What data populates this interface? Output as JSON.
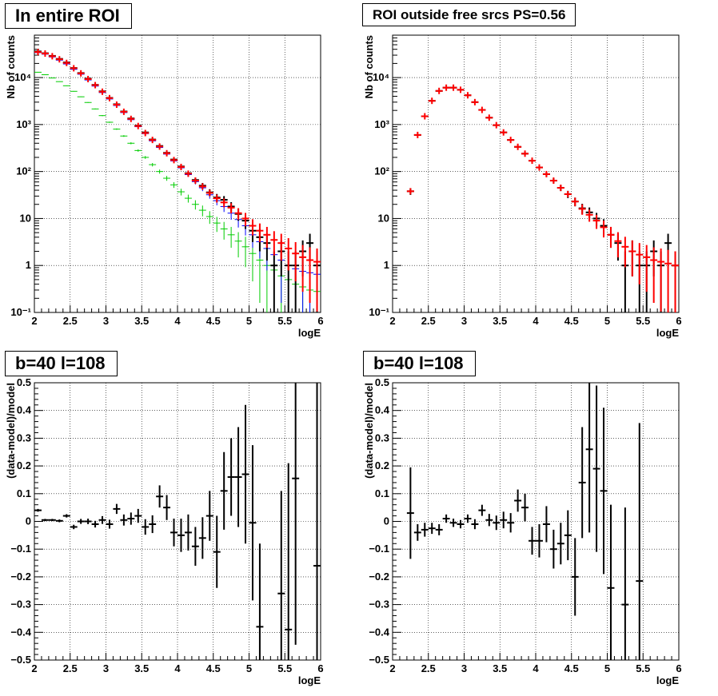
{
  "panels": [
    {
      "title": "In entire ROI"
    },
    {
      "title": "ROI outside free srcs PS=0.56"
    },
    {
      "title": "b=40 l=108"
    },
    {
      "title": "b=40 l=108"
    }
  ],
  "colors": {
    "data": "#000000",
    "model": "#ff0000",
    "blue": "#0000ff",
    "green": "#00cc00"
  },
  "chart_data": [
    {
      "type": "scatter",
      "title": "In entire ROI",
      "xlabel": "logE",
      "ylabel": "Nb of counts",
      "xlim": [
        2,
        6
      ],
      "ylim": [
        0.1,
        80000
      ],
      "log_y": true,
      "grid": true,
      "x_ticks": [
        "2",
        "2.5",
        "3",
        "3.5",
        "4",
        "4.5",
        "5",
        "5.5",
        "6"
      ],
      "y_ticks": [
        "10⁻¹",
        "1",
        "10",
        "10²",
        "10³",
        "10⁴"
      ],
      "x": [
        2.05,
        2.15,
        2.25,
        2.35,
        2.45,
        2.55,
        2.65,
        2.75,
        2.85,
        2.95,
        3.05,
        3.15,
        3.25,
        3.35,
        3.45,
        3.55,
        3.65,
        3.75,
        3.85,
        3.95,
        4.05,
        4.15,
        4.25,
        4.35,
        4.45,
        4.55,
        4.65,
        4.75,
        4.85,
        4.95,
        5.05,
        5.15,
        5.25,
        5.35,
        5.45,
        5.55,
        5.65,
        5.75,
        5.85,
        5.95
      ],
      "series": [
        {
          "color": "#000000",
          "values": [
            36000,
            33000,
            29000,
            25000,
            21000,
            16000,
            12500,
            9500,
            7000,
            5100,
            3700,
            2700,
            1900,
            1350,
            950,
            680,
            480,
            350,
            250,
            180,
            128,
            92,
            66,
            50,
            36,
            28,
            25,
            18,
            12.5,
            9,
            5.5,
            4,
            3,
            1,
            2,
            1,
            1,
            2,
            3,
            1
          ]
        },
        {
          "color": "#ff0000",
          "values": [
            35000,
            32500,
            28500,
            24500,
            20500,
            15800,
            12300,
            9300,
            6900,
            5000,
            3650,
            2650,
            1870,
            1320,
            930,
            660,
            470,
            340,
            245,
            175,
            125,
            90,
            64,
            48,
            35,
            27,
            22,
            17,
            13,
            10,
            7,
            5.5,
            4.5,
            3.5,
            3,
            2.3,
            1.8,
            1.5,
            1.3,
            1.2
          ]
        },
        {
          "color": "#0000ff",
          "values": [
            34000,
            31500,
            27500,
            23500,
            19500,
            15000,
            11800,
            8900,
            6600,
            4800,
            3500,
            2550,
            1800,
            1270,
            900,
            640,
            450,
            325,
            235,
            168,
            120,
            86,
            61,
            45,
            32,
            24,
            18,
            13,
            9.5,
            7,
            4.5,
            3.2,
            2.3,
            1.7,
            1.3,
            1.0,
            0.85,
            0.75,
            0.7,
            0.65
          ]
        },
        {
          "color": "#00cc00",
          "values": [
            13000,
            11500,
            9800,
            8200,
            6700,
            5100,
            3900,
            2950,
            2150,
            1550,
            1120,
            800,
            570,
            400,
            280,
            200,
            140,
            100,
            72,
            52,
            37,
            27,
            20,
            15,
            11,
            8,
            6,
            4.5,
            3.3,
            2.5,
            1.8,
            1.3,
            1,
            0.8,
            0.6,
            0.5,
            0.4,
            0.35,
            0.3,
            0.28
          ]
        }
      ]
    },
    {
      "type": "scatter",
      "title": "ROI outside free srcs PS=0.56",
      "xlabel": "logE",
      "ylabel": "Nb of counts",
      "xlim": [
        2,
        6
      ],
      "ylim": [
        0.1,
        80000
      ],
      "log_y": true,
      "grid": true,
      "x_ticks": [
        "2",
        "2.5",
        "3",
        "3.5",
        "4",
        "4.5",
        "5",
        "5.5",
        "6"
      ],
      "y_ticks": [
        "10⁻¹",
        "1",
        "10",
        "10²",
        "10³",
        "10⁴"
      ],
      "x": [
        2.25,
        2.35,
        2.45,
        2.55,
        2.65,
        2.75,
        2.85,
        2.95,
        3.05,
        3.15,
        3.25,
        3.35,
        3.45,
        3.55,
        3.65,
        3.75,
        3.85,
        3.95,
        4.05,
        4.15,
        4.25,
        4.35,
        4.45,
        4.55,
        4.65,
        4.75,
        4.85,
        4.95,
        5.05,
        5.15,
        5.25,
        5.35,
        5.45,
        5.55,
        5.65,
        5.75,
        5.85,
        5.95
      ],
      "series": [
        {
          "color": "#000000",
          "values": [
            38,
            600,
            1500,
            3200,
            5200,
            6100,
            6100,
            5500,
            4200,
            3000,
            2050,
            1400,
            970,
            680,
            470,
            335,
            240,
            170,
            122,
            88,
            64,
            45,
            33,
            23,
            16.5,
            13.5,
            10,
            7,
            4.5,
            3,
            1,
            2,
            1,
            1,
            2,
            1,
            3,
            1
          ]
        },
        {
          "color": "#ff0000",
          "values": [
            38,
            600,
            1500,
            3200,
            5200,
            6100,
            6100,
            5500,
            4200,
            3000,
            2050,
            1400,
            970,
            680,
            470,
            335,
            240,
            170,
            122,
            88,
            64,
            45,
            33,
            23,
            16,
            12,
            9,
            6.5,
            4.5,
            3.3,
            2.5,
            2,
            1.7,
            1.5,
            1.3,
            1.2,
            1.1,
            1.0
          ]
        }
      ]
    },
    {
      "type": "scatter",
      "title": "b=40 l=108",
      "xlabel": "logE",
      "ylabel": "(data-model)/model",
      "xlim": [
        2,
        6
      ],
      "ylim": [
        -0.5,
        0.5
      ],
      "grid": true,
      "x_ticks": [
        "2",
        "2.5",
        "3",
        "3.5",
        "4",
        "4.5",
        "5",
        "5.5",
        "6"
      ],
      "y_ticks": [
        "−0.5",
        "−0.4",
        "−0.3",
        "−0.2",
        "−0.1",
        "0",
        "0.1",
        "0.2",
        "0.3",
        "0.4",
        "0.5"
      ],
      "x": [
        2.05,
        2.15,
        2.25,
        2.35,
        2.45,
        2.55,
        2.65,
        2.75,
        2.85,
        2.95,
        3.05,
        3.15,
        3.25,
        3.35,
        3.45,
        3.55,
        3.65,
        3.75,
        3.85,
        3.95,
        4.05,
        4.15,
        4.25,
        4.35,
        4.45,
        4.55,
        4.65,
        4.75,
        4.85,
        4.95,
        5.05,
        5.15,
        5.25,
        5.35,
        5.45,
        5.55,
        5.65,
        5.75,
        5.85,
        5.95
      ],
      "values": [
        0.04,
        0.005,
        0.005,
        0.002,
        0.02,
        -0.02,
        0.0,
        0.0,
        -0.01,
        0.005,
        -0.01,
        0.045,
        0.005,
        0.01,
        0.02,
        -0.02,
        -0.01,
        0.09,
        0.05,
        -0.04,
        -0.05,
        -0.04,
        -0.09,
        -0.06,
        0.02,
        -0.11,
        0.11,
        0.16,
        0.16,
        0.17,
        -0.005,
        -0.38,
        null,
        null,
        -0.26,
        -0.39,
        0.155,
        null,
        null,
        -0.16
      ],
      "errors": [
        0.005,
        0.004,
        0.004,
        0.005,
        0.006,
        0.008,
        0.009,
        0.01,
        0.012,
        0.014,
        0.016,
        0.018,
        0.02,
        0.022,
        0.025,
        0.028,
        0.032,
        0.04,
        0.045,
        0.05,
        0.06,
        0.065,
        0.07,
        0.075,
        0.09,
        0.13,
        0.14,
        0.14,
        0.18,
        0.25,
        0.28,
        0.3,
        null,
        null,
        0.37,
        0.6,
        0.6,
        null,
        null,
        0.8
      ]
    },
    {
      "type": "scatter",
      "title": "b=40 l=108",
      "xlabel": "logE",
      "ylabel": "(data-model)/model",
      "xlim": [
        2,
        6
      ],
      "ylim": [
        -0.5,
        0.5
      ],
      "grid": true,
      "x_ticks": [
        "2",
        "2.5",
        "3",
        "3.5",
        "4",
        "4.5",
        "5",
        "5.5",
        "6"
      ],
      "y_ticks": [
        "−0.5",
        "−0.4",
        "−0.3",
        "−0.2",
        "−0.1",
        "0",
        "0.1",
        "0.2",
        "0.3",
        "0.4",
        "0.5"
      ],
      "x": [
        2.25,
        2.35,
        2.45,
        2.55,
        2.65,
        2.75,
        2.85,
        2.95,
        3.05,
        3.15,
        3.25,
        3.35,
        3.45,
        3.55,
        3.65,
        3.75,
        3.85,
        3.95,
        4.05,
        4.15,
        4.25,
        4.35,
        4.45,
        4.55,
        4.65,
        4.75,
        4.85,
        4.95,
        5.05,
        5.15,
        5.25,
        5.35,
        5.45,
        5.55
      ],
      "values": [
        0.03,
        -0.04,
        -0.03,
        -0.025,
        -0.03,
        0.01,
        -0.005,
        -0.01,
        0.01,
        -0.01,
        0.04,
        0.005,
        -0.005,
        0.005,
        -0.005,
        0.075,
        0.05,
        -0.07,
        -0.07,
        -0.01,
        -0.1,
        -0.08,
        -0.05,
        -0.2,
        0.14,
        0.26,
        0.19,
        0.11,
        -0.24,
        null,
        -0.3,
        null,
        -0.215,
        null
      ],
      "errors": [
        0.165,
        0.03,
        0.025,
        0.02,
        0.02,
        0.015,
        0.015,
        0.015,
        0.015,
        0.018,
        0.02,
        0.022,
        0.026,
        0.03,
        0.035,
        0.04,
        0.05,
        0.05,
        0.06,
        0.065,
        0.07,
        0.075,
        0.09,
        0.14,
        0.2,
        0.3,
        0.3,
        0.3,
        0.3,
        null,
        0.35,
        null,
        0.57,
        null
      ]
    }
  ]
}
